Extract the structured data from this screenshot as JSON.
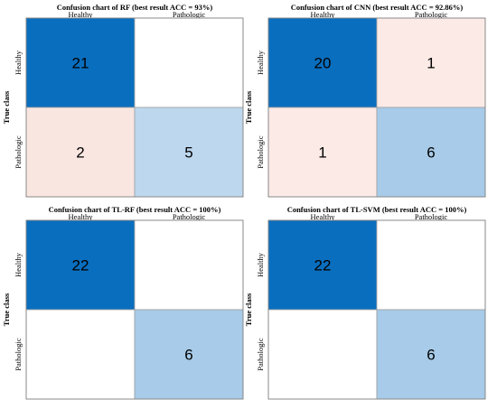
{
  "chart_data": [
    {
      "type": "heatmap",
      "title": "Confusion chart of RF (best result ACC = 93%)",
      "ylabel": "True class",
      "columns": [
        "Healthy",
        "Pathologic"
      ],
      "rows": [
        "Healthy",
        "Pathologic"
      ],
      "values": [
        [
          21,
          0
        ],
        [
          2,
          5
        ]
      ],
      "cell_colors": [
        [
          "#0a6ebe",
          "#ffffff"
        ],
        [
          "#f9e6e1",
          "#bcd7ee"
        ]
      ]
    },
    {
      "type": "heatmap",
      "title": "Confusion chart of CNN (best result ACC = 92.86%)",
      "ylabel": "True class",
      "columns": [
        "Healthy",
        "Pathologic"
      ],
      "rows": [
        "Healthy",
        "Pathologic"
      ],
      "values": [
        [
          20,
          1
        ],
        [
          1,
          6
        ]
      ],
      "cell_colors": [
        [
          "#0a6ebe",
          "#fbeae6"
        ],
        [
          "#fbeae6",
          "#a7cbe8"
        ]
      ]
    },
    {
      "type": "heatmap",
      "title": "Confusion chart of TL-RF (best result ACC = 100%)",
      "ylabel": "True class",
      "columns": [
        "Healthy",
        "Pathologic"
      ],
      "rows": [
        "Healthy",
        "Pathologic"
      ],
      "values": [
        [
          22,
          0
        ],
        [
          0,
          6
        ]
      ],
      "cell_colors": [
        [
          "#0a6ebe",
          "#ffffff"
        ],
        [
          "#ffffff",
          "#a7cbe8"
        ]
      ]
    },
    {
      "type": "heatmap",
      "title": "Confusion chart of TL-SVM (best result ACC = 100%)",
      "ylabel": "True class",
      "columns": [
        "Healthy",
        "Pathologic"
      ],
      "rows": [
        "Healthy",
        "Pathologic"
      ],
      "values": [
        [
          22,
          0
        ],
        [
          0,
          6
        ]
      ],
      "cell_colors": [
        [
          "#0a6ebe",
          "#ffffff"
        ],
        [
          "#ffffff",
          "#a7cbe8"
        ]
      ]
    }
  ]
}
